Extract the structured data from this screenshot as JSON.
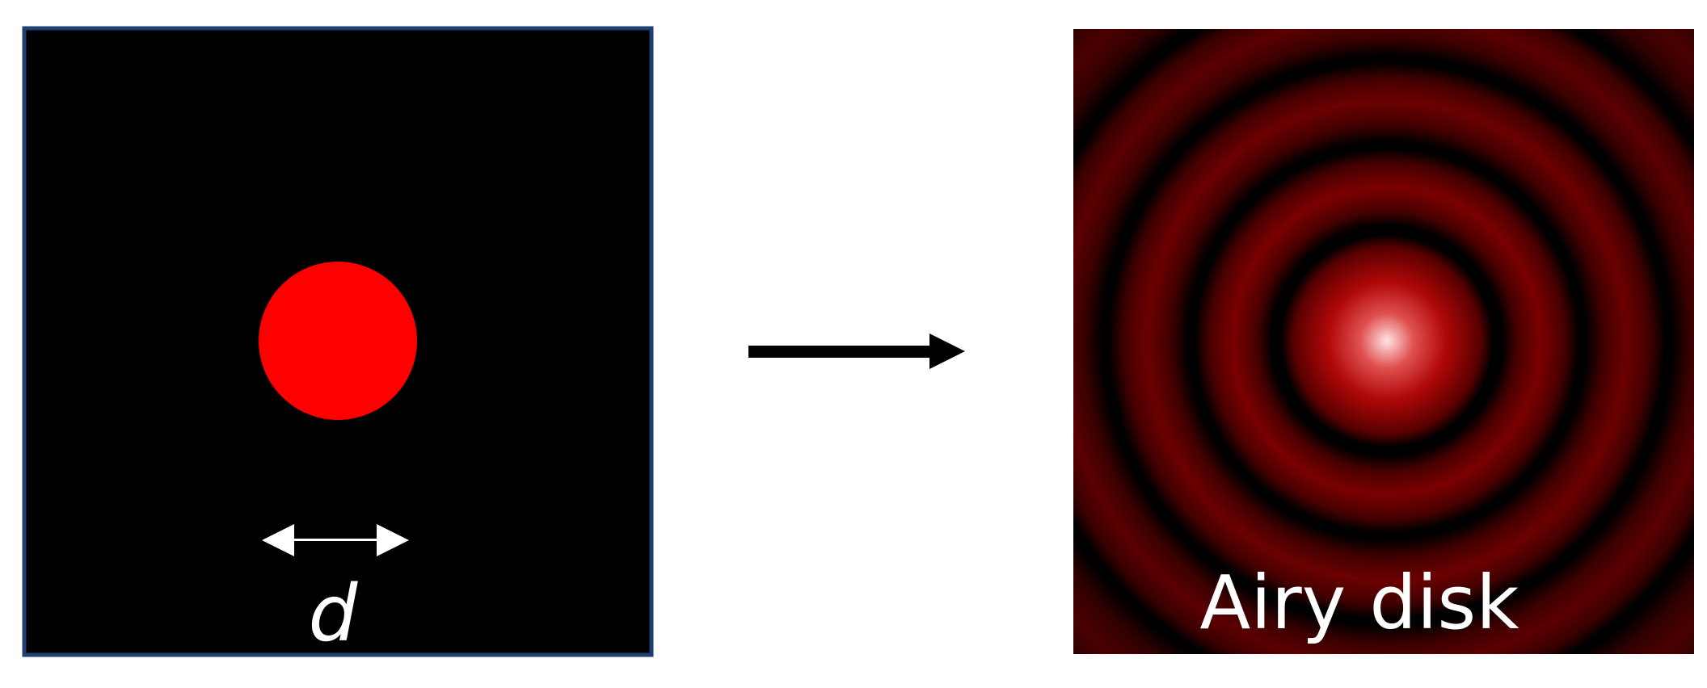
{
  "diagram": {
    "aperture_label": "d",
    "pattern_label": "Airy disk"
  },
  "colors": {
    "aperture_background": "#000000",
    "aperture_border": "#1f3f73",
    "aperture_disc": "#ff0000",
    "arrow": "#000000",
    "dimension_arrow": "#ffffff",
    "pattern_background": "#1a0000",
    "pattern_ring": "#7a0000",
    "pattern_center": "#ffe6e6",
    "label_text": "#ffffff"
  }
}
